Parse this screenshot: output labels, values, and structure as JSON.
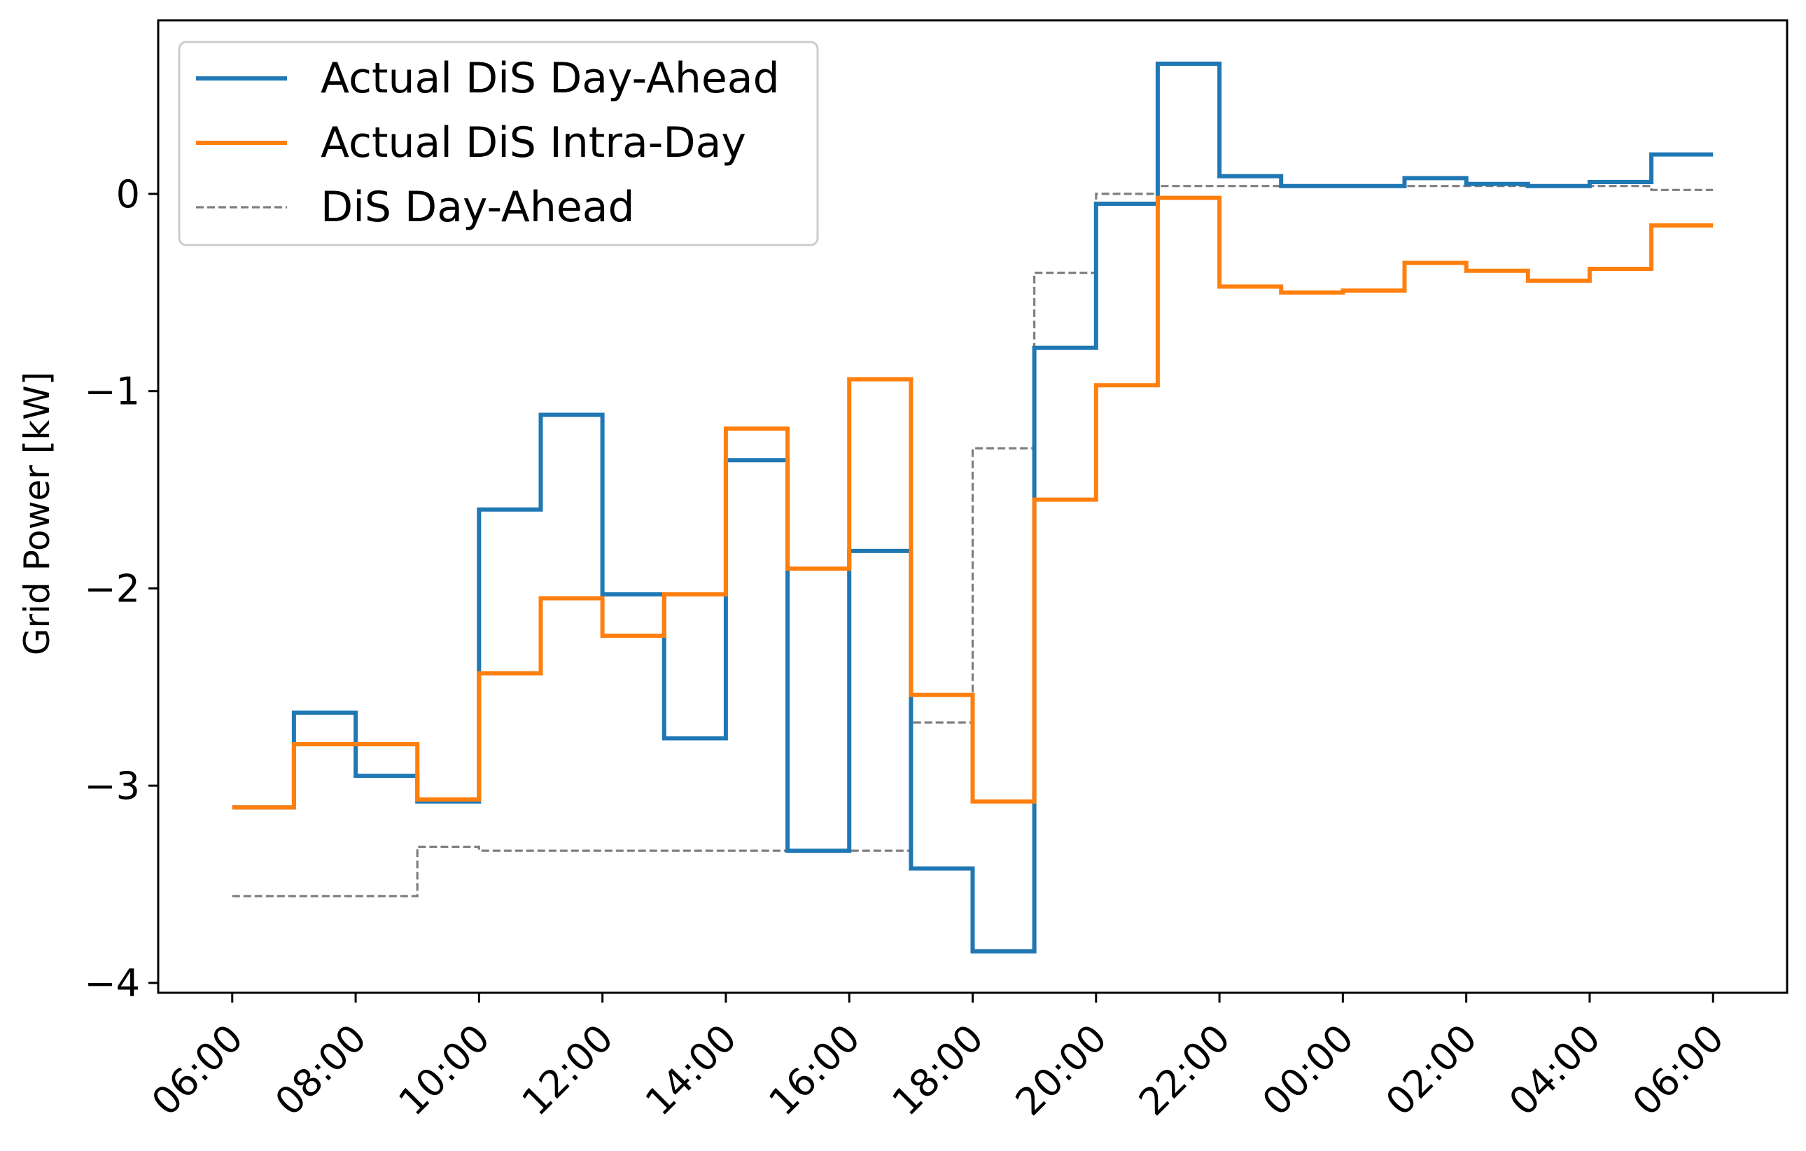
{
  "chart_data": {
    "type": "line",
    "step": "post",
    "ylabel": "Grid Power [kW]",
    "xlabel": "",
    "title": "",
    "ylim": [
      -4.05,
      0.88
    ],
    "xlim": [
      -1.2,
      25.2
    ],
    "x": [
      0,
      1,
      2,
      3,
      4,
      5,
      6,
      7,
      8,
      9,
      10,
      11,
      12,
      13,
      14,
      15,
      16,
      17,
      18,
      19,
      20,
      21,
      22,
      23,
      24
    ],
    "x_ticks": [
      0,
      2,
      4,
      6,
      8,
      10,
      12,
      14,
      16,
      18,
      20,
      22,
      24
    ],
    "x_tick_labels": [
      "06:00",
      "08:00",
      "10:00",
      "12:00",
      "14:00",
      "16:00",
      "18:00",
      "20:00",
      "22:00",
      "00:00",
      "02:00",
      "04:00",
      "06:00"
    ],
    "y_ticks": [
      0,
      -1,
      -2,
      -3,
      -4
    ],
    "y_tick_labels": [
      "0",
      "−1",
      "−2",
      "−3",
      "−4"
    ],
    "grid": false,
    "legend_position": "top-left",
    "series": [
      {
        "name": "Actual DiS Day-Ahead",
        "color": "#1f77b4",
        "style": "solid",
        "values": [
          -3.11,
          -2.63,
          -2.95,
          -3.08,
          -1.6,
          -1.12,
          -2.03,
          -2.76,
          -1.35,
          -3.33,
          -1.81,
          -3.42,
          -3.84,
          -0.78,
          -0.05,
          0.66,
          0.09,
          0.04,
          0.04,
          0.08,
          0.05,
          0.04,
          0.06,
          0.2,
          0.2
        ]
      },
      {
        "name": "Actual DiS Intra-Day",
        "color": "#ff7f0e",
        "style": "solid",
        "values": [
          -3.11,
          -2.79,
          -2.79,
          -3.07,
          -2.43,
          -2.05,
          -2.24,
          -2.03,
          -1.19,
          -1.9,
          -0.94,
          -2.54,
          -3.08,
          -1.55,
          -0.97,
          -0.02,
          -0.47,
          -0.5,
          -0.49,
          -0.35,
          -0.39,
          -0.44,
          -0.38,
          -0.16,
          -0.16
        ]
      },
      {
        "name": "DiS Day-Ahead",
        "color": "#7f7f7f",
        "style": "dashed",
        "values": [
          -3.56,
          -3.56,
          -3.56,
          -3.31,
          -3.33,
          -3.33,
          -3.33,
          -3.33,
          -3.33,
          -3.33,
          -3.33,
          -2.68,
          -1.29,
          -0.4,
          0.0,
          0.04,
          0.04,
          0.04,
          0.04,
          0.04,
          0.04,
          0.04,
          0.04,
          0.02,
          0.02
        ]
      }
    ]
  }
}
